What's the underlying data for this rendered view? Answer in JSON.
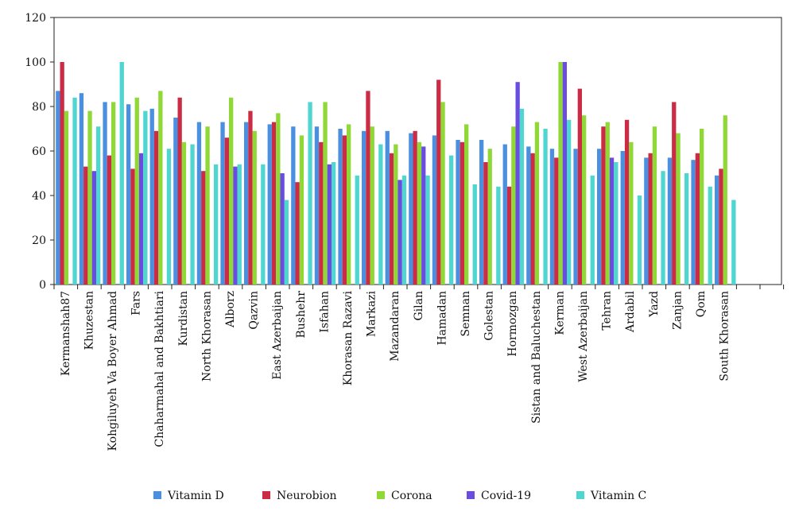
{
  "chart_data": {
    "type": "bar",
    "title": "",
    "xlabel": "",
    "ylabel": "",
    "ylim": [
      0,
      120
    ],
    "yticks": [
      0,
      20,
      40,
      60,
      80,
      100,
      120
    ],
    "grid": false,
    "legend_position": "bottom",
    "categories": [
      "Kermanshah87",
      "Khuzestan",
      "Kohgiluyeh Va Boyer Ahmad",
      "Fars",
      "Chaharmahal and Bakhtiari",
      "Kurdistan",
      "North Khorasan",
      "Alborz",
      "Qazvin",
      "East Azerbaijan",
      "Bushehr",
      "Isfahan",
      "Khorasan Razavi",
      "Markazi",
      "Mazandaran",
      "Gilan",
      "Hamadan",
      "Semnan",
      "Golestan",
      "Hormozgan",
      "Sistan and Baluchestan",
      "Kerman",
      "West Azerbaijan",
      "Tehran",
      "Ardabil",
      "Yazd",
      "Zanjan",
      "Qom",
      "South Khorasan"
    ],
    "series": [
      {
        "name": "Vitamin D",
        "color": "#4a8fe0",
        "values": [
          87,
          86,
          82,
          81,
          79,
          75,
          73,
          73,
          73,
          72,
          71,
          71,
          70,
          69,
          69,
          68,
          67,
          65,
          65,
          63,
          62,
          61,
          61,
          61,
          60,
          57,
          57,
          56,
          49
        ]
      },
      {
        "name": "Neurobion",
        "color": "#cc2b45",
        "values": [
          100,
          53,
          58,
          52,
          69,
          84,
          51,
          66,
          78,
          73,
          46,
          64,
          67,
          87,
          59,
          69,
          92,
          64,
          55,
          44,
          59,
          57,
          88,
          71,
          74,
          59,
          82,
          59,
          52
        ]
      },
      {
        "name": "Corona",
        "color": "#8fd835",
        "values": [
          78,
          78,
          82,
          84,
          87,
          64,
          71,
          84,
          69,
          77,
          67,
          82,
          72,
          71,
          63,
          64,
          82,
          72,
          61,
          71,
          73,
          100,
          76,
          73,
          64,
          71,
          68,
          70,
          76
        ]
      },
      {
        "name": "Covid-19",
        "color": "#6b4ce0",
        "values": [
          0,
          51,
          0,
          59,
          0,
          0,
          0,
          53,
          0,
          50,
          0,
          54,
          0,
          0,
          47,
          62,
          0,
          0,
          0,
          91,
          0,
          100,
          0,
          57,
          0,
          0,
          0,
          0,
          0
        ]
      },
      {
        "name": "Vitamin C",
        "color": "#4fd6d0",
        "values": [
          84,
          71,
          100,
          78,
          61,
          63,
          54,
          54,
          54,
          38,
          82,
          55,
          49,
          63,
          49,
          49,
          58,
          45,
          44,
          79,
          70,
          74,
          49,
          55,
          40,
          51,
          50,
          44,
          38
        ]
      }
    ]
  }
}
